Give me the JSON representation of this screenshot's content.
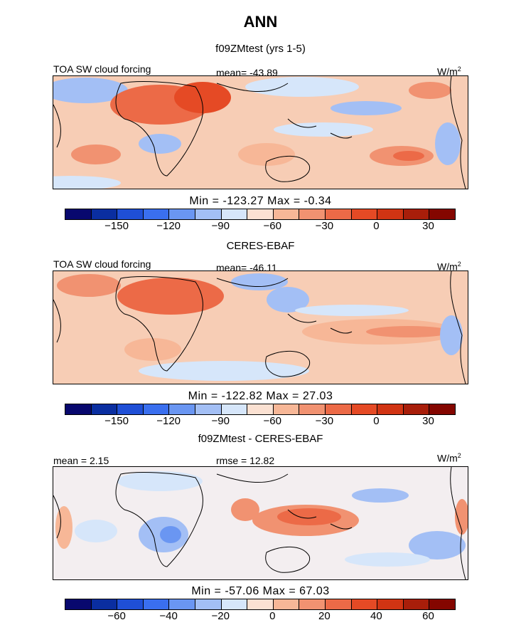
{
  "title": "ANN",
  "colors": [
    "#08086e",
    "#0a2ea0",
    "#1f4fd6",
    "#3a6fef",
    "#6a96f2",
    "#a3bff5",
    "#d6e6fa",
    "#fbe1d2",
    "#f7b797",
    "#f19271",
    "#ec6a47",
    "#e54a25",
    "#d13413",
    "#a81e0a",
    "#840600"
  ],
  "panels": [
    {
      "id": "model",
      "subtitle": "f09ZMtest (yrs 1-5)",
      "left_label": "TOA SW cloud forcing",
      "center_label": "mean= -43.89",
      "units": "W/m",
      "units_sup": "2",
      "minmax": "Min = -123.27 Max = -0.34",
      "ticks": [
        "-150",
        "-120",
        "-90",
        "-60",
        "-30",
        "0",
        "30"
      ]
    },
    {
      "id": "obs",
      "subtitle": "CERES-EBAF",
      "left_label": "TOA SW cloud forcing",
      "center_label": "mean= -46.11",
      "units": "W/m",
      "units_sup": "2",
      "minmax": "Min = -122.82 Max = 27.03",
      "ticks": [
        "-150",
        "-120",
        "-90",
        "-60",
        "-30",
        "0",
        "30"
      ]
    },
    {
      "id": "diff",
      "subtitle": "f09ZMtest - CERES-EBAF",
      "left_label": "mean = 2.15",
      "center_label": "rmse = 12.82",
      "units": "W/m",
      "units_sup": "2",
      "minmax": "Min = -57.06 Max = 67.03",
      "ticks": [
        "-60",
        "-40",
        "-20",
        "0",
        "20",
        "40",
        "60"
      ]
    }
  ]
}
